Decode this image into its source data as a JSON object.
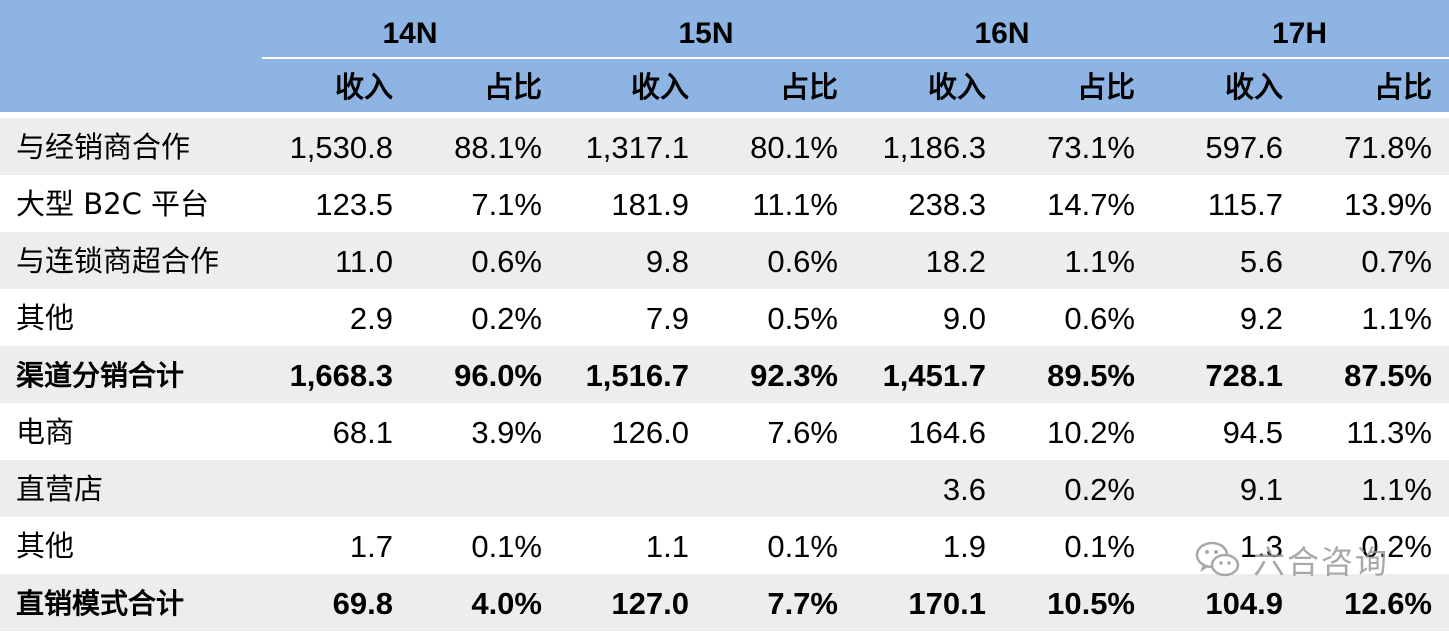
{
  "header": {
    "periods": [
      "14N",
      "15N",
      "16N",
      "17H"
    ],
    "subcols": [
      "收入",
      "占比"
    ]
  },
  "rows": [
    {
      "label": "与经销商合作",
      "values": [
        "1,530.8",
        "88.1%",
        "1,317.1",
        "80.1%",
        "1,186.3",
        "73.1%",
        "597.6",
        "71.8%"
      ],
      "bold": false
    },
    {
      "label": "大型 B2C 平台",
      "values": [
        "123.5",
        "7.1%",
        "181.9",
        "11.1%",
        "238.3",
        "14.7%",
        "115.7",
        "13.9%"
      ],
      "bold": false
    },
    {
      "label": "与连锁商超合作",
      "values": [
        "11.0",
        "0.6%",
        "9.8",
        "0.6%",
        "18.2",
        "1.1%",
        "5.6",
        "0.7%"
      ],
      "bold": false
    },
    {
      "label": "其他",
      "values": [
        "2.9",
        "0.2%",
        "7.9",
        "0.5%",
        "9.0",
        "0.6%",
        "9.2",
        "1.1%"
      ],
      "bold": false
    },
    {
      "label": "渠道分销合计",
      "values": [
        "1,668.3",
        "96.0%",
        "1,516.7",
        "92.3%",
        "1,451.7",
        "89.5%",
        "728.1",
        "87.5%"
      ],
      "bold": true
    },
    {
      "label": "电商",
      "values": [
        "68.1",
        "3.9%",
        "126.0",
        "7.6%",
        "164.6",
        "10.2%",
        "94.5",
        "11.3%"
      ],
      "bold": false
    },
    {
      "label": "直营店",
      "values": [
        "",
        "",
        "",
        "",
        "3.6",
        "0.2%",
        "9.1",
        "1.1%"
      ],
      "bold": false
    },
    {
      "label": "其他",
      "values": [
        "1.7",
        "0.1%",
        "1.1",
        "0.1%",
        "1.9",
        "0.1%",
        "1.3",
        "0.2%"
      ],
      "bold": false
    },
    {
      "label": "直销模式合计",
      "values": [
        "69.8",
        "4.0%",
        "127.0",
        "7.7%",
        "170.1",
        "10.5%",
        "104.9",
        "12.6%"
      ],
      "bold": true
    }
  ],
  "watermark": {
    "text": "六合咨询",
    "icon": "wechat-icon"
  }
}
